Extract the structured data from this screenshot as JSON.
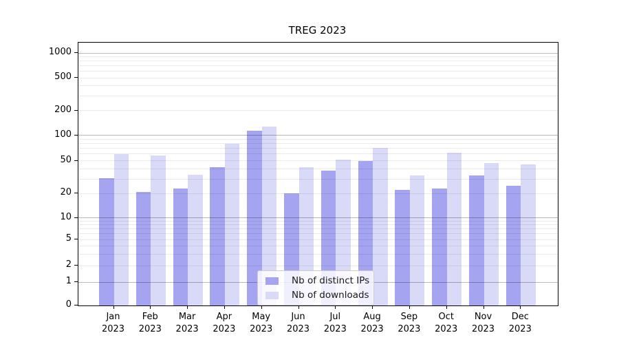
{
  "title": "TREG 2023",
  "chart_data": {
    "type": "bar",
    "title": "TREG 2023",
    "categories": [
      "Jan 2023",
      "Feb 2023",
      "Mar 2023",
      "Apr 2023",
      "May 2023",
      "Jun 2023",
      "Jul 2023",
      "Aug 2023",
      "Sep 2023",
      "Oct 2023",
      "Nov 2023",
      "Dec 2023"
    ],
    "series": [
      {
        "name": "Nb of distinct IPs",
        "color": "#a4a4f0",
        "values": [
          31,
          21,
          23,
          42,
          114,
          20,
          38,
          50,
          22,
          23,
          33,
          25
        ]
      },
      {
        "name": "Nb of downloads",
        "color": "#d9d9f8",
        "values": [
          60,
          58,
          34,
          79,
          129,
          42,
          51,
          71,
          33,
          62,
          47,
          45
        ]
      }
    ],
    "xlabel": "",
    "ylabel": "",
    "y_scale": "symlog",
    "ylim": [
      0,
      1350
    ],
    "y_ticks": [
      0,
      1,
      2,
      5,
      10,
      20,
      50,
      100,
      200,
      500,
      1000
    ],
    "y_major_gridlines": [
      1,
      10,
      100,
      1000
    ],
    "y_minor_gridlines": [
      2,
      3,
      4,
      5,
      6,
      7,
      8,
      9,
      20,
      30,
      40,
      50,
      60,
      70,
      80,
      90,
      200,
      300,
      400,
      500,
      600,
      700,
      800,
      900
    ],
    "y_scale_anchors_frac_from_bottom": [
      [
        0,
        0.0
      ],
      [
        1,
        0.089
      ],
      [
        2,
        0.1518
      ],
      [
        5,
        0.2513
      ],
      [
        10,
        0.3325
      ],
      [
        20,
        0.4257
      ],
      [
        50,
        0.551
      ],
      [
        100,
        0.6474
      ],
      [
        200,
        0.7411
      ],
      [
        500,
        0.866
      ],
      [
        1000,
        0.9607
      ]
    ],
    "grid": true,
    "legend_position": "lower center"
  }
}
